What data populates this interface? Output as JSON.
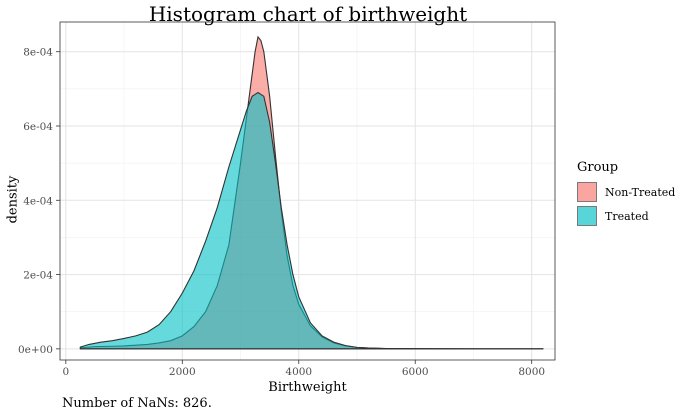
{
  "chart_data": {
    "type": "area",
    "title": "Histogram chart of birthweight",
    "xlabel": "Birthweight",
    "ylabel": "density",
    "xlim": [
      -100,
      8400
    ],
    "ylim": [
      -3e-05,
      0.00088
    ],
    "x_ticks": [
      0,
      2000,
      4000,
      6000,
      8000
    ],
    "x_tick_labels": [
      "0",
      "2000",
      "4000",
      "6000",
      "8000"
    ],
    "y_ticks": [
      0,
      0.0002,
      0.0004,
      0.0006,
      0.0008
    ],
    "y_tick_labels": [
      "0e+00",
      "2e-04",
      "4e-04",
      "6e-04",
      "8e-04"
    ],
    "grid": true,
    "legend": {
      "title": "Group",
      "position": "right"
    },
    "series": [
      {
        "name": "Non-Treated",
        "color": "#F8766D",
        "x": [
          250,
          500,
          800,
          1000,
          1200,
          1400,
          1600,
          1800,
          2000,
          2200,
          2400,
          2600,
          2800,
          3000,
          3100,
          3200,
          3250,
          3300,
          3350,
          3400,
          3500,
          3600,
          3700,
          3800,
          3900,
          4000,
          4200,
          4400,
          4600,
          4800,
          5000,
          5200,
          5500,
          6000,
          7000,
          8200
        ],
        "y": [
          3e-06,
          6e-06,
          7e-06,
          8e-06,
          1e-05,
          1.2e-05,
          1.6e-05,
          2.2e-05,
          3.5e-05,
          6e-05,
          0.0001,
          0.00017,
          0.00028,
          0.0005,
          0.00062,
          0.00074,
          0.0008,
          0.00084,
          0.00083,
          0.0008,
          0.00068,
          0.00052,
          0.00037,
          0.00025,
          0.00017,
          0.00012,
          6.2e-05,
          3.2e-05,
          1.6e-05,
          8e-06,
          4e-06,
          2e-06,
          1e-06,
          5e-07,
          2e-07,
          0
        ]
      },
      {
        "name": "Treated",
        "color": "#00BFC4",
        "x": [
          250,
          400,
          600,
          800,
          1000,
          1200,
          1400,
          1600,
          1800,
          2000,
          2200,
          2400,
          2600,
          2800,
          3000,
          3100,
          3200,
          3300,
          3400,
          3500,
          3600,
          3700,
          3800,
          3900,
          4000,
          4200,
          4400,
          4600,
          4800,
          5000,
          5200,
          5500,
          6000,
          7000,
          8200
        ],
        "y": [
          5e-06,
          1.2e-05,
          1.8e-05,
          2.2e-05,
          2.8e-05,
          3.5e-05,
          4.5e-05,
          6.5e-05,
          0.0001,
          0.00015,
          0.00021,
          0.00029,
          0.00038,
          0.00049,
          0.00059,
          0.00064,
          0.00068,
          0.00069,
          0.00068,
          0.00061,
          0.0005,
          0.00038,
          0.00028,
          0.0002,
          0.00014,
          7e-05,
          3.5e-05,
          1.8e-05,
          9e-06,
          4e-06,
          2e-06,
          1e-06,
          5e-07,
          2e-07,
          0
        ]
      }
    ]
  },
  "caption": "Number of NaNs: 826."
}
